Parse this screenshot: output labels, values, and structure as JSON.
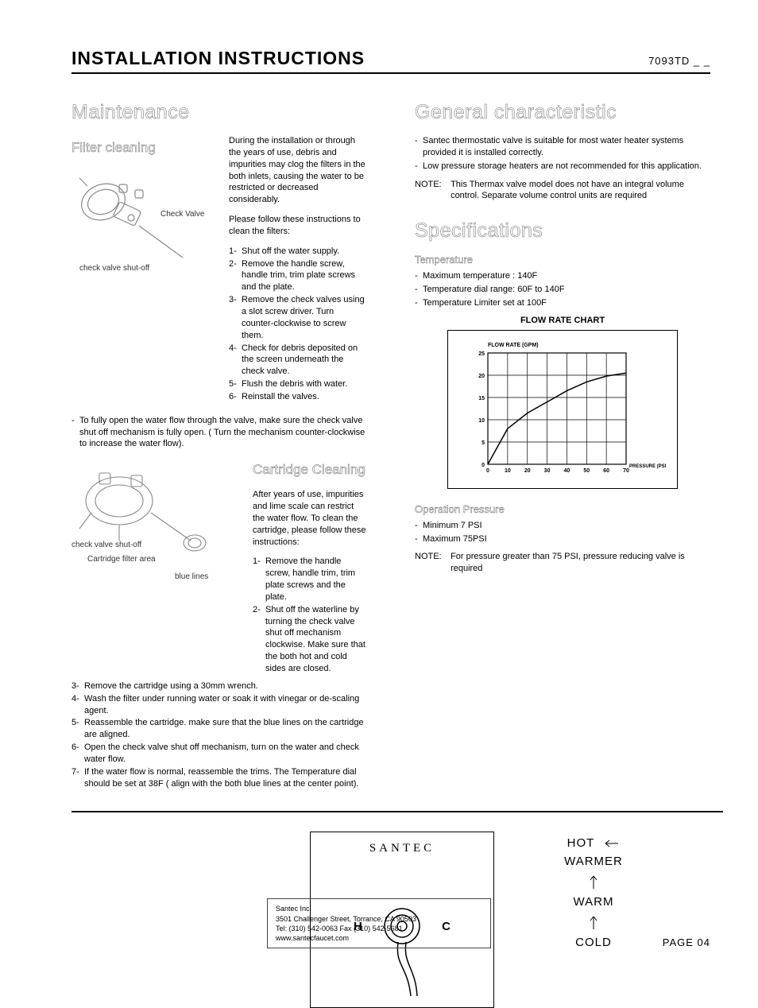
{
  "header": {
    "title": "INSTALLATION INSTRUCTIONS",
    "code": "7093TD _ _"
  },
  "left": {
    "h_maintenance": "Maintenance",
    "h_filter": "Filter cleaning",
    "filter_para1": "During the installation or through the years of use, debris and impurities may clog the filters in the both inlets, causing the water to be restricted or decreased considerably.",
    "filter_para2": "Please follow these instructions to clean the filters:",
    "filter_steps": [
      "Shut off the water supply.",
      "Remove the handle screw, handle trim, trim plate screws and  the plate.",
      "Remove the check valves using a slot screw driver. Turn counter-clockwise to screw them.",
      "Check for debris deposited on the screen underneath the check valve.",
      "Flush the debris with water.",
      "Reinstall the valves."
    ],
    "diagram1_labels": {
      "check_valve": "Check Valve",
      "shutoff": "check valve shut-off"
    },
    "mid_note_dash": "-",
    "mid_note": "To fully open the water flow through the valve, make sure the check valve shut off mechanism is fully open. ( Turn the mechanism counter-clockwise to increase the water flow).",
    "h_cartridge": "Cartridge Cleaning",
    "cartridge_para": "After years of use, impurities and lime scale can restrict the water flow. To clean the cartridge, please follow these instructions:",
    "cartridge_steps_top": [
      "Remove the handle screw, handle trim, trim plate screws and  the plate.",
      "Shut off the waterline by turning the check valve shut off mechanism clockwise. Make sure that the both hot and cold sides are closed."
    ],
    "diagram2_labels": {
      "shutoff": "check valve shut-off",
      "filter_area": "Cartridge filter area",
      "blue": "blue lines"
    },
    "cartridge_steps_bottom": [
      "Remove the cartridge  using a 30mm  wrench.",
      "Wash the filter under running water or soak it with vinegar or de-scaling agent.",
      "Reassemble the cartridge. make sure that the blue lines on the cartridge are aligned.",
      "Open the check valve shut off mechanism, turn on the water and check water  flow.",
      "If the water flow is normal, reassemble the trims.  The Temperature dial  should be set at 38F ( align with the both blue lines at the center point)."
    ]
  },
  "right": {
    "h_general": "General characteristic",
    "general_bullets": [
      "Santec thermostatic valve is suitable for most water heater systems provided it is installed correctly.",
      "Low pressure storage heaters are not recommended for this application."
    ],
    "general_note_label": "NOTE:",
    "general_note": "This Thermax valve model does not have an integral volume control. Separate volume control units are required",
    "h_specs": "Specifications",
    "spec_temp_heading": "Temperature",
    "spec_temp_bullets": [
      "Maximum temperature : 140F",
      "Temperature dial range: 60F to 140F",
      "Temperature Limiter set at 100F"
    ],
    "chart": {
      "title": "FLOW RATE CHART",
      "y_axis_label": "FLOW RATE (GPM)",
      "x_axis_label": "PRESSURE (PSI)",
      "x_ticks": [
        0,
        10,
        20,
        30,
        40,
        50,
        60,
        70
      ],
      "y_ticks": [
        0,
        5,
        10,
        15,
        20,
        25
      ],
      "xlim": [
        0,
        70
      ],
      "ylim": [
        0,
        25
      ],
      "line_color": "#000000",
      "grid_color": "#000000",
      "background_color": "#ffffff",
      "points": [
        {
          "x": 0,
          "y": 0
        },
        {
          "x": 10,
          "y": 8
        },
        {
          "x": 20,
          "y": 11.5
        },
        {
          "x": 30,
          "y": 14
        },
        {
          "x": 40,
          "y": 16.5
        },
        {
          "x": 50,
          "y": 18.5
        },
        {
          "x": 60,
          "y": 19.8
        },
        {
          "x": 70,
          "y": 20.5
        }
      ]
    },
    "spec_op_heading": "Operation Pressure",
    "spec_op_bullets": [
      "Minimum 7 PSI",
      "Maximum 75PSI"
    ],
    "op_note_label": "NOTE:",
    "op_note": "For pressure greater than 75 PSI, pressure reducing valve is required"
  },
  "bottom_panel": {
    "brand": "SANTEC",
    "h": "H",
    "c": "C"
  },
  "temps": {
    "hot": "HOT",
    "warmer": "WARMER",
    "warm": "WARM",
    "cold": "COLD"
  },
  "footer": {
    "line1": "Santec Inc.",
    "line2": "3501 Challenger Street, Torrance, CA 90503",
    "line3": "Tel: (310) 542-0063  Fax (310) 542-5681",
    "line4": "www.santecfaucet.com"
  },
  "page_number": "PAGE 04"
}
